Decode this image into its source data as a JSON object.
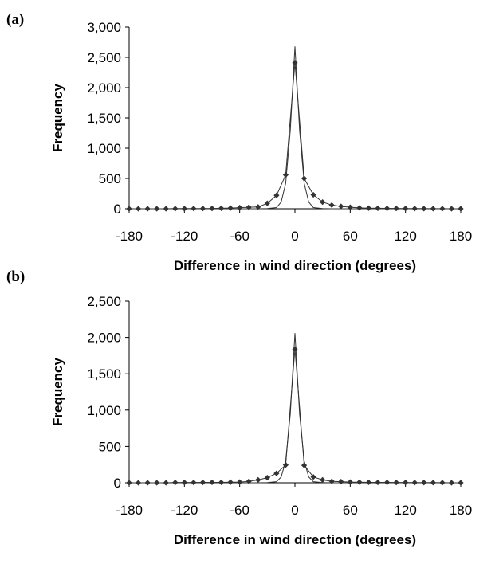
{
  "chart_data": [
    {
      "type": "line",
      "panel_label": "(a)",
      "xlabel": "Difference in wind direction (degrees)",
      "ylabel": "Frequency",
      "xlim": [
        -180,
        180
      ],
      "ylim": [
        0,
        3000
      ],
      "x_ticks": [
        -180,
        -120,
        -60,
        0,
        60,
        120,
        180
      ],
      "y_ticks": [
        0,
        500,
        1000,
        1500,
        2000,
        2500,
        3000
      ],
      "x_tick_labels": [
        "-180",
        "-120",
        "-60",
        "0",
        "60",
        "120",
        "180"
      ],
      "y_tick_labels": [
        "0",
        "500",
        "1,000",
        "1,500",
        "2,000",
        "2,500",
        "3,000"
      ],
      "grid": false,
      "series": [
        {
          "marker": "diamond",
          "color": "#333333",
          "x": [
            -180,
            -170,
            -160,
            -150,
            -140,
            -130,
            -120,
            -110,
            -100,
            -90,
            -80,
            -70,
            -60,
            -50,
            -40,
            -30,
            -20,
            -10,
            0,
            10,
            20,
            30,
            40,
            50,
            60,
            70,
            80,
            90,
            100,
            110,
            120,
            130,
            140,
            150,
            160,
            170,
            180
          ],
          "y": [
            0,
            0,
            0,
            0,
            0,
            2,
            2,
            4,
            4,
            5,
            8,
            12,
            18,
            25,
            30,
            90,
            220,
            560,
            2410,
            500,
            230,
            110,
            60,
            40,
            25,
            15,
            10,
            8,
            6,
            5,
            4,
            3,
            2,
            1,
            1,
            0,
            0
          ]
        },
        {
          "marker": "none",
          "color": "#333333",
          "x": [
            -180,
            -40,
            -30,
            -20,
            -15,
            -10,
            -5,
            0,
            5,
            10,
            15,
            20,
            30,
            40,
            180
          ],
          "y": [
            0,
            0,
            2,
            20,
            110,
            420,
            1300,
            2680,
            1300,
            420,
            110,
            20,
            2,
            0,
            0
          ]
        }
      ]
    },
    {
      "type": "line",
      "panel_label": "(b)",
      "xlabel": "Difference in wind direction (degrees)",
      "ylabel": "Frequency",
      "xlim": [
        -180,
        180
      ],
      "ylim": [
        0,
        2500
      ],
      "x_ticks": [
        -180,
        -120,
        -60,
        0,
        60,
        120,
        180
      ],
      "y_ticks": [
        0,
        500,
        1000,
        1500,
        2000,
        2500
      ],
      "x_tick_labels": [
        "-180",
        "-120",
        "-60",
        "0",
        "60",
        "120",
        "180"
      ],
      "y_tick_labels": [
        "0",
        "500",
        "1,000",
        "1,500",
        "2,000",
        "2,500"
      ],
      "grid": false,
      "series": [
        {
          "marker": "diamond",
          "color": "#333333",
          "x": [
            -180,
            -170,
            -160,
            -150,
            -140,
            -130,
            -120,
            -110,
            -100,
            -90,
            -80,
            -70,
            -60,
            -50,
            -40,
            -30,
            -20,
            -10,
            0,
            10,
            20,
            30,
            40,
            50,
            60,
            70,
            80,
            90,
            100,
            110,
            120,
            130,
            140,
            150,
            160,
            170,
            180
          ],
          "y": [
            0,
            0,
            0,
            0,
            0,
            4,
            4,
            4,
            5,
            6,
            6,
            8,
            10,
            20,
            40,
            70,
            130,
            245,
            1840,
            240,
            80,
            40,
            20,
            15,
            10,
            8,
            6,
            5,
            5,
            4,
            4,
            3,
            3,
            2,
            1,
            0,
            0
          ]
        },
        {
          "marker": "none",
          "color": "#333333",
          "x": [
            -180,
            -40,
            -30,
            -20,
            -15,
            -10,
            -5,
            0,
            5,
            10,
            15,
            20,
            30,
            40,
            180
          ],
          "y": [
            0,
            0,
            2,
            15,
            80,
            300,
            950,
            2060,
            950,
            300,
            80,
            15,
            2,
            0,
            0
          ]
        }
      ]
    }
  ]
}
